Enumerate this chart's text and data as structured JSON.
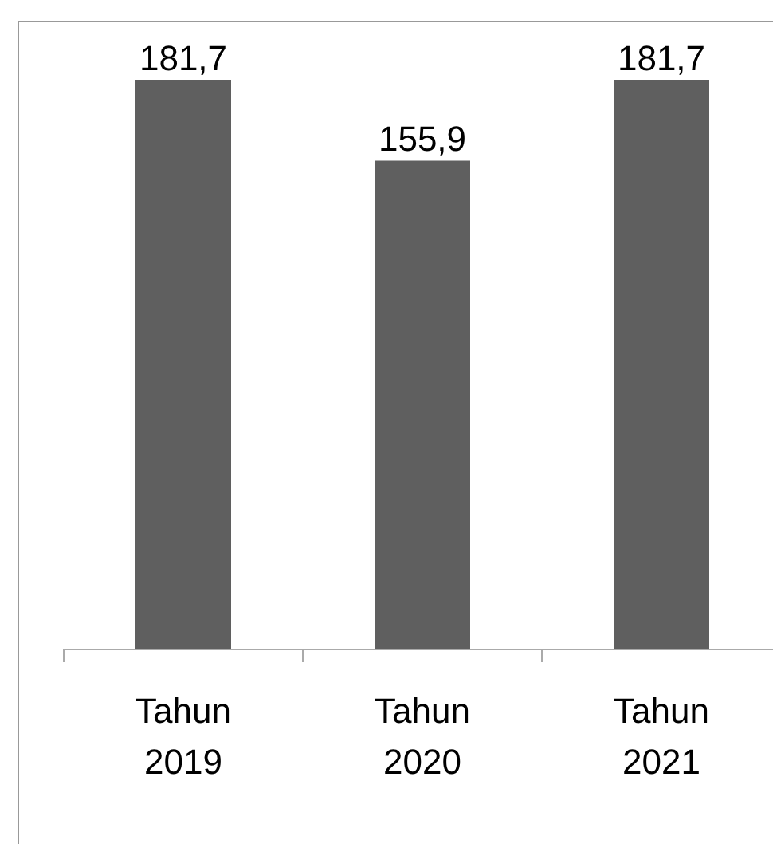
{
  "chart_data": {
    "type": "bar",
    "categories": [
      "Tahun 2019",
      "Tahun 2020",
      "Tahun 2021"
    ],
    "tick_labels": "x",
    "series": [
      {
        "color": "#5f5f5f",
        "values": [
          181.7,
          155.9,
          181.7
        ],
        "value_labels": [
          "181,7",
          "155,9",
          "181,7"
        ]
      }
    ]
  }
}
